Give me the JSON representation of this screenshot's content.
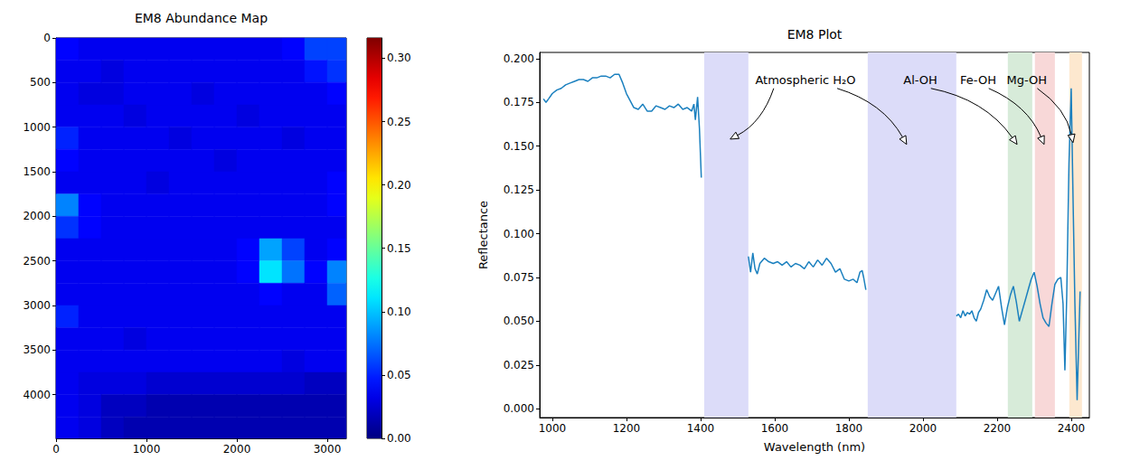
{
  "chart_data": [
    {
      "type": "heatmap",
      "title": "EM8 Abundance Map",
      "x": [
        125,
        375,
        625,
        875,
        1125,
        1375,
        1625,
        1875,
        2125,
        2375,
        2625,
        2875,
        3125
      ],
      "y": [
        125,
        375,
        625,
        875,
        1125,
        1375,
        1625,
        1875,
        2125,
        2375,
        2625,
        2875,
        3125,
        3375,
        3625,
        3875,
        4125,
        4375
      ],
      "cells": [
        [
          0.04,
          0.035,
          0.035,
          0.035,
          0.035,
          0.035,
          0.035,
          0.035,
          0.035,
          0.035,
          0.04,
          0.06,
          0.06
        ],
        [
          0.035,
          0.035,
          0.03,
          0.035,
          0.035,
          0.035,
          0.035,
          0.035,
          0.035,
          0.035,
          0.035,
          0.045,
          0.055
        ],
        [
          0.035,
          0.03,
          0.03,
          0.035,
          0.035,
          0.035,
          0.03,
          0.035,
          0.035,
          0.035,
          0.035,
          0.035,
          0.04
        ],
        [
          0.035,
          0.035,
          0.035,
          0.03,
          0.035,
          0.035,
          0.035,
          0.035,
          0.03,
          0.035,
          0.035,
          0.035,
          0.035
        ],
        [
          0.05,
          0.035,
          0.035,
          0.035,
          0.035,
          0.03,
          0.035,
          0.035,
          0.035,
          0.035,
          0.03,
          0.035,
          0.035
        ],
        [
          0.04,
          0.035,
          0.035,
          0.035,
          0.035,
          0.035,
          0.035,
          0.03,
          0.035,
          0.035,
          0.035,
          0.035,
          0.035
        ],
        [
          0.035,
          0.035,
          0.035,
          0.035,
          0.03,
          0.035,
          0.035,
          0.035,
          0.035,
          0.035,
          0.035,
          0.035,
          0.04
        ],
        [
          0.08,
          0.04,
          0.035,
          0.035,
          0.035,
          0.035,
          0.035,
          0.035,
          0.035,
          0.035,
          0.035,
          0.035,
          0.04
        ],
        [
          0.055,
          0.04,
          0.035,
          0.035,
          0.035,
          0.035,
          0.035,
          0.035,
          0.035,
          0.035,
          0.035,
          0.035,
          0.035
        ],
        [
          0.035,
          0.035,
          0.035,
          0.035,
          0.035,
          0.035,
          0.035,
          0.035,
          0.04,
          0.09,
          0.06,
          0.035,
          0.04
        ],
        [
          0.035,
          0.035,
          0.035,
          0.035,
          0.035,
          0.035,
          0.035,
          0.035,
          0.04,
          0.11,
          0.075,
          0.04,
          0.08
        ],
        [
          0.035,
          0.035,
          0.035,
          0.035,
          0.035,
          0.035,
          0.035,
          0.035,
          0.035,
          0.04,
          0.035,
          0.035,
          0.07
        ],
        [
          0.05,
          0.035,
          0.035,
          0.035,
          0.035,
          0.035,
          0.035,
          0.035,
          0.035,
          0.035,
          0.035,
          0.035,
          0.035
        ],
        [
          0.035,
          0.035,
          0.035,
          0.03,
          0.035,
          0.035,
          0.035,
          0.035,
          0.035,
          0.035,
          0.035,
          0.035,
          0.035
        ],
        [
          0.035,
          0.035,
          0.035,
          0.035,
          0.035,
          0.035,
          0.035,
          0.035,
          0.035,
          0.035,
          0.03,
          0.035,
          0.035
        ],
        [
          0.035,
          0.03,
          0.03,
          0.03,
          0.025,
          0.025,
          0.025,
          0.025,
          0.025,
          0.025,
          0.025,
          0.02,
          0.02
        ],
        [
          0.035,
          0.03,
          0.02,
          0.02,
          0.015,
          0.015,
          0.015,
          0.015,
          0.015,
          0.015,
          0.015,
          0.015,
          0.015
        ],
        [
          0.035,
          0.03,
          0.02,
          0.015,
          0.015,
          0.015,
          0.015,
          0.015,
          0.015,
          0.015,
          0.015,
          0.015,
          0.015
        ]
      ],
      "xlim": [
        0,
        3210
      ],
      "ylim": [
        4490,
        0
      ],
      "xticks": [
        0,
        1000,
        2000,
        3000
      ],
      "yticks": [
        0,
        500,
        1000,
        1500,
        2000,
        2500,
        3000,
        3500,
        4000
      ],
      "color_range": [
        0,
        0.316
      ],
      "color_ticks": [
        {
          "value": 0,
          "label": "0.00"
        },
        0.05,
        {
          "value": 0.1,
          "label": "0.10"
        },
        0.15,
        {
          "value": 0.2,
          "label": "0.20"
        },
        0.25,
        {
          "value": 0.3,
          "label": "0.30"
        }
      ],
      "grid": false
    },
    {
      "type": "line",
      "title": "EM8 Plot",
      "x_label": "Wavelength (nm)",
      "y_label": "Reflectance",
      "x": [
        976,
        983,
        990,
        1000,
        1012,
        1024,
        1036,
        1048,
        1060,
        1072,
        1084,
        1096,
        1108,
        1120,
        1132,
        1144,
        1156,
        1168,
        1180,
        1190,
        1200,
        1210,
        1220,
        1232,
        1244,
        1256,
        1268,
        1280,
        1292,
        1304,
        1316,
        1328,
        1340,
        1352,
        1364,
        1376,
        1382,
        1386,
        1392,
        1397,
        1402,
        1465,
        1529,
        1535,
        1541,
        1547,
        1553,
        1560,
        1572,
        1584,
        1596,
        1608,
        1620,
        1632,
        1644,
        1656,
        1668,
        1680,
        1692,
        1704,
        1716,
        1728,
        1740,
        1752,
        1764,
        1776,
        1788,
        1800,
        1812,
        1822,
        1830,
        1836,
        1840,
        1846,
        1968,
        2090,
        2096,
        2102,
        2108,
        2114,
        2120,
        2126,
        2132,
        2138,
        2144,
        2150,
        2156,
        2164,
        2172,
        2180,
        2188,
        2196,
        2204,
        2212,
        2220,
        2228,
        2236,
        2244,
        2252,
        2260,
        2268,
        2276,
        2284,
        2292,
        2300,
        2308,
        2316,
        2324,
        2332,
        2340,
        2348,
        2356,
        2364,
        2372,
        2378,
        2383,
        2388,
        2394,
        2400,
        2405,
        2410,
        2416,
        2424
      ],
      "values": [
        0.177,
        0.175,
        0.177,
        0.18,
        0.182,
        0.183,
        0.185,
        0.186,
        0.187,
        0.188,
        0.188,
        0.187,
        0.189,
        0.189,
        0.19,
        0.19,
        0.189,
        0.191,
        0.191,
        0.186,
        0.18,
        0.176,
        0.172,
        0.171,
        0.174,
        0.17,
        0.17,
        0.173,
        0.172,
        0.171,
        0.173,
        0.172,
        0.174,
        0.171,
        0.172,
        0.17,
        0.174,
        0.165,
        0.178,
        0.16,
        0.132,
        null,
        0.087,
        0.078,
        0.089,
        0.08,
        0.077,
        0.083,
        0.086,
        0.084,
        0.083,
        0.084,
        0.082,
        0.084,
        0.081,
        0.083,
        0.082,
        0.08,
        0.084,
        0.081,
        0.085,
        0.082,
        0.086,
        0.083,
        0.078,
        0.08,
        0.074,
        0.073,
        0.074,
        0.072,
        0.078,
        0.079,
        0.075,
        0.068,
        null,
        0.053,
        0.054,
        0.052,
        0.056,
        0.053,
        0.055,
        0.054,
        0.056,
        0.052,
        0.05,
        0.055,
        0.057,
        0.062,
        0.068,
        0.064,
        0.062,
        0.066,
        0.07,
        0.058,
        0.048,
        0.058,
        0.065,
        0.07,
        0.061,
        0.05,
        0.056,
        0.062,
        0.068,
        0.074,
        0.078,
        0.07,
        0.06,
        0.052,
        0.049,
        0.047,
        0.06,
        0.071,
        0.074,
        0.075,
        0.06,
        0.022,
        0.065,
        0.14,
        0.183,
        0.12,
        0.06,
        0.005,
        0.067
      ],
      "color": "#1b80bf",
      "xlim": [
        966,
        2449
      ],
      "ylim": [
        -0.005,
        0.2035
      ],
      "xticks": [
        1000,
        1200,
        1400,
        1600,
        1800,
        2000,
        2200,
        2400
      ],
      "yticks": [
        {
          "value": 0,
          "label": "0.000"
        },
        0.025,
        {
          "value": 0.05,
          "label": "0.050"
        },
        0.075,
        {
          "value": 0.1,
          "label": "0.100"
        },
        0.125,
        {
          "value": 0.15,
          "label": "0.150"
        },
        0.175,
        {
          "value": 0.2,
          "label": "0.200"
        }
      ],
      "grid": false,
      "bands": [
        {
          "range": [
            1410,
            1529
          ],
          "color": "#dcdcf9"
        },
        {
          "range": [
            1851,
            2090
          ],
          "color": "#dcdcf9"
        },
        {
          "range": [
            2229,
            2295
          ],
          "color": "#d7ebd9"
        },
        {
          "range": [
            2302,
            2356
          ],
          "color": "#f8d8d8"
        },
        {
          "range": [
            2395,
            2429
          ],
          "color": "#fde8cf"
        }
      ],
      "annotations": [
        {
          "text": "Atmospheric H₂O",
          "xytext": [
            1683,
            0.188
          ],
          "xy": [
            [
              1480,
              0.154
            ],
            [
              1956,
              0.151
            ]
          ]
        },
        {
          "text": "Al-OH",
          "xytext": [
            1993,
            0.188
          ],
          "xy": [
            [
              2254,
              0.151
            ]
          ]
        },
        {
          "text": "Fe-OH",
          "xytext": [
            2149,
            0.188
          ],
          "xy": [
            [
              2327,
              0.151
            ]
          ]
        },
        {
          "text": "Mg-OH",
          "xytext": [
            2280,
            0.188
          ],
          "xy": [
            [
              2405,
              0.152
            ]
          ]
        }
      ]
    }
  ]
}
